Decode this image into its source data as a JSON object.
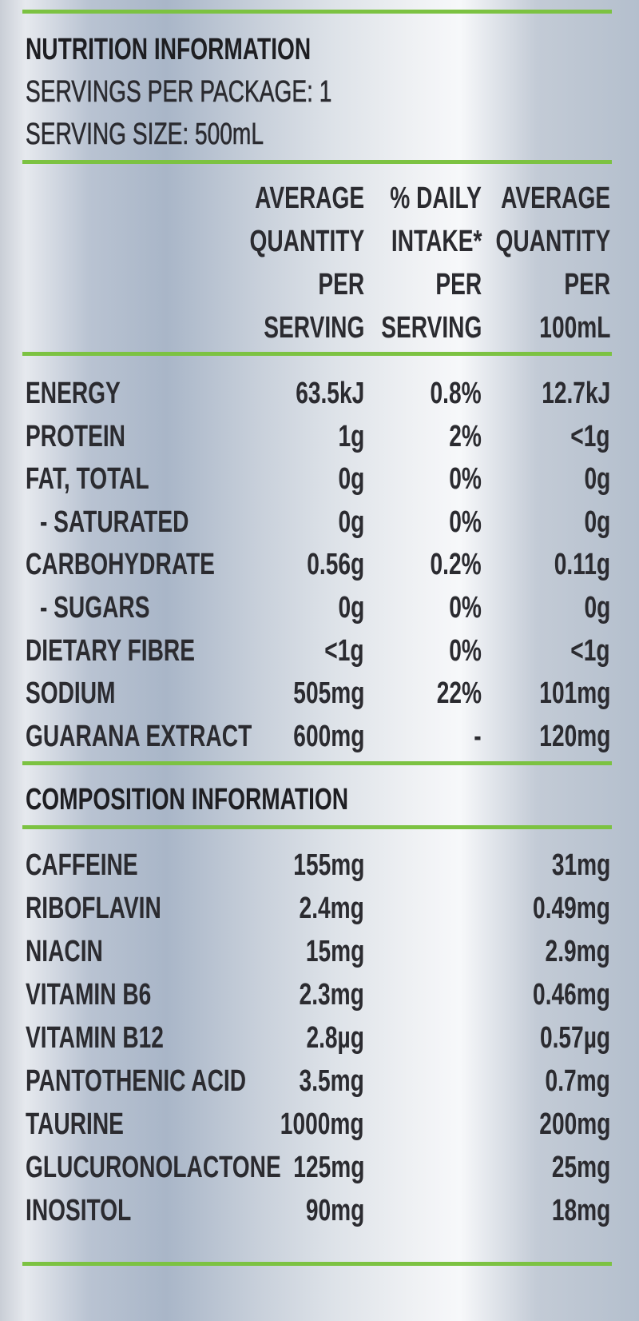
{
  "header": {
    "title": "NUTRITION INFORMATION",
    "servings": "SERVINGS PER PACKAGE: 1",
    "serving_size": "SERVING SIZE: 500mL"
  },
  "nutrition_table": {
    "columns": [
      [
        "AVERAGE",
        "QUANTITY",
        "PER",
        "SERVING"
      ],
      [
        "% DAILY",
        "INTAKE*",
        "PER",
        "SERVING"
      ],
      [
        "AVERAGE",
        "QUANTITY",
        "PER",
        "100mL"
      ]
    ],
    "rows": [
      [
        "ENERGY",
        "63.5kJ",
        "0.8%",
        "12.7kJ"
      ],
      [
        "PROTEIN",
        "1g",
        "2%",
        "<1g"
      ],
      [
        "FAT, TOTAL",
        "0g",
        "0%",
        "0g"
      ],
      [
        "- SATURATED",
        "0g",
        "0%",
        "0g"
      ],
      [
        "CARBOHYDRATE",
        "0.56g",
        "0.2%",
        "0.11g"
      ],
      [
        "- SUGARS",
        "0g",
        "0%",
        "0g"
      ],
      [
        "DIETARY FIBRE",
        "<1g",
        "0%",
        "<1g"
      ],
      [
        "SODIUM",
        "505mg",
        "22%",
        "101mg"
      ],
      [
        "GUARANA EXTRACT",
        "600mg",
        "-",
        "120mg"
      ]
    ]
  },
  "composition": {
    "title": "COMPOSITION INFORMATION",
    "rows": [
      [
        "CAFFEINE",
        "155mg",
        "31mg"
      ],
      [
        "RIBOFLAVIN",
        "2.4mg",
        "0.49mg"
      ],
      [
        "NIACIN",
        "15mg",
        "2.9mg"
      ],
      [
        "VITAMIN B6",
        "2.3mg",
        "0.46mg"
      ],
      [
        "VITAMIN B12",
        "2.8µg",
        "0.57µg"
      ],
      [
        "PANTOTHENIC ACID",
        "3.5mg",
        "0.7mg"
      ],
      [
        "TAURINE",
        "1000mg",
        "200mg"
      ],
      [
        "GLUCURONOLACTONE",
        "125mg",
        "25mg"
      ],
      [
        "INOSITOL",
        "90mg",
        "18mg"
      ]
    ]
  }
}
